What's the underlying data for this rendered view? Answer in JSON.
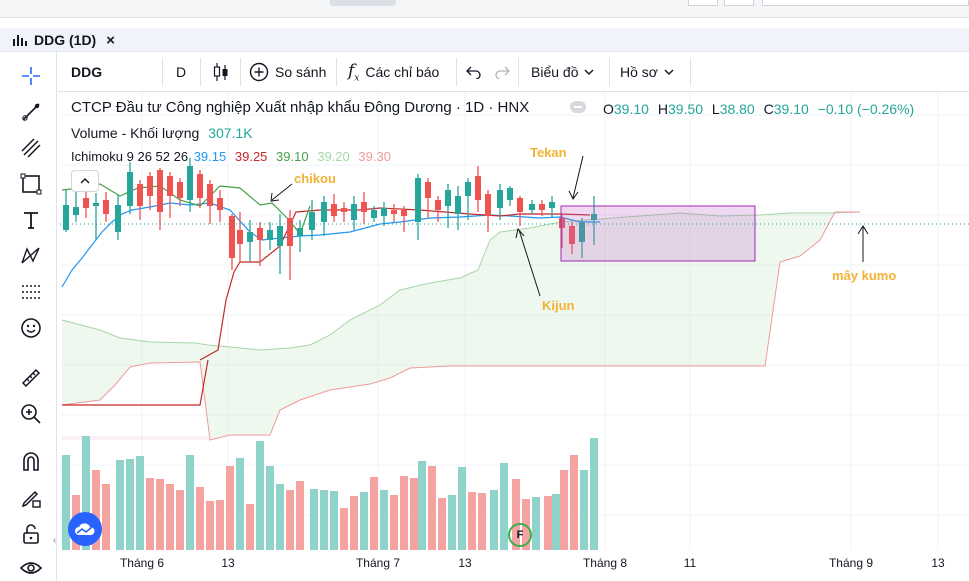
{
  "window": {
    "tab_title": "DDG (1D)"
  },
  "toolbar": {
    "symbol": "DDG",
    "interval": "D",
    "compare_label": "So sánh",
    "indicators_label": "Các chỉ báo",
    "chart_type_label": "Biểu đồ",
    "profile_label": "Hồ sơ"
  },
  "header": {
    "title": "CTCP Đầu tư Công nghiệp Xuất nhập khẩu Đông Dương · 1D · HNX",
    "ohlc": {
      "o_label": "O",
      "o": "39.10",
      "h_label": "H",
      "h": "39.50",
      "l_label": "L",
      "l": "38.80",
      "c_label": "C",
      "c": "39.10",
      "change": "−0.10 (−0.26%)"
    }
  },
  "volume_legend": {
    "label": "Volume - Khối lượng",
    "value": "307.1K"
  },
  "ichimoku_legend": {
    "label": "Ichimoku 9 26 52 26",
    "v1": "39.15",
    "v2": "39.25",
    "v3": "39.10",
    "v4": "39.20",
    "v5": "39.30"
  },
  "annotations": {
    "tekan": "Tekan",
    "chikou": "chikou",
    "kijun": "Kijun",
    "kumo": "mây kumo"
  },
  "x_axis": [
    "Tháng 6",
    "13",
    "Tháng 7",
    "13",
    "Tháng 8",
    "11",
    "Tháng 9",
    "13"
  ],
  "f_marker": "F",
  "colors": {
    "up": "#26a69a",
    "down": "#ef5350",
    "vol_up": "#8fd3cb",
    "vol_down": "#f4a3a1",
    "tenkan": "#2196f3",
    "kijun": "#c62828",
    "chikou": "#43a047",
    "span_a": "#a5d6a7",
    "span_b": "#ef9a9a",
    "highlight": "#9c27b0",
    "annotation": "#f2b233"
  },
  "icons": [
    "crosshair-icon",
    "trend-line-icon",
    "fib-icon",
    "rectangle-icon",
    "text-icon",
    "pattern-icon",
    "forecast-icon",
    "emoji-icon",
    "ruler-icon",
    "zoom-icon",
    "magnet-icon",
    "lock-draw-icon",
    "unlock-icon",
    "eye-icon"
  ],
  "chart_data": {
    "type": "candlestick",
    "series": [
      {
        "name": "Volume - Khối lượng"
      },
      {
        "name": "Ichimoku 9 26 52 26"
      }
    ]
  }
}
